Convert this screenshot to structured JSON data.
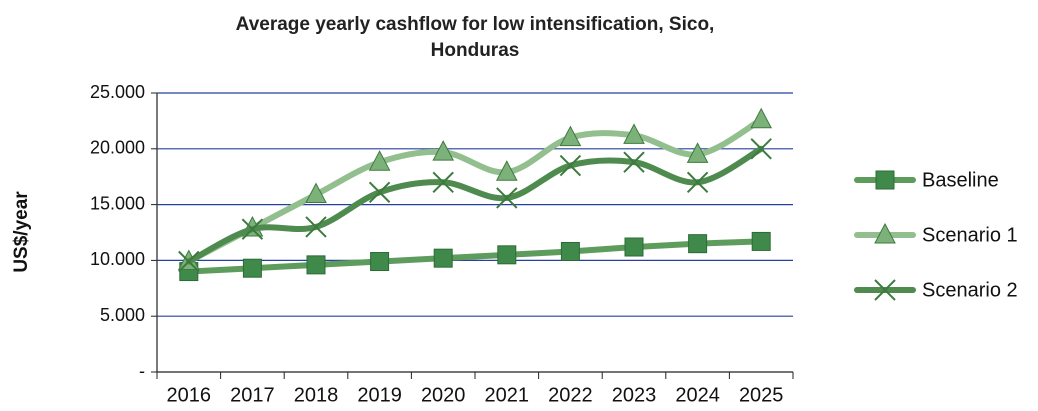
{
  "chart_data": {
    "type": "line",
    "title": "Average yearly cashflow for low intensification, Sico, Honduras",
    "y_label": "US$/year",
    "categories": [
      "2016",
      "2017",
      "2018",
      "2019",
      "2020",
      "2021",
      "2022",
      "2023",
      "2024",
      "2025"
    ],
    "series": [
      {
        "name": "Baseline",
        "color": "#5e9c5e",
        "marker": "square",
        "marker_color": "#3f8a4a",
        "values": [
          9000,
          9300,
          9600,
          9900,
          10200,
          10500,
          10800,
          11200,
          11500,
          11700
        ]
      },
      {
        "name": "Scenario 1",
        "color": "#93bf8f",
        "marker": "triangle",
        "marker_color": "#7cb27a",
        "values": [
          9900,
          12900,
          15900,
          18800,
          19700,
          17900,
          21000,
          21200,
          19500,
          22600
        ]
      },
      {
        "name": "Scenario 2",
        "color": "#4f8a4f",
        "marker": "x",
        "marker_color": "#3d7a3f",
        "values": [
          9900,
          12800,
          13000,
          16100,
          17000,
          15600,
          18500,
          18800,
          17000,
          20000
        ]
      }
    ],
    "ylim": [
      0,
      25000
    ],
    "yticks": [
      {
        "value": 0,
        "label": "-"
      },
      {
        "value": 5000,
        "label": "5.000"
      },
      {
        "value": 10000,
        "label": "10.000"
      },
      {
        "value": 15000,
        "label": "15.000"
      },
      {
        "value": 20000,
        "label": "20.000"
      },
      {
        "value": 25000,
        "label": "25.000"
      }
    ],
    "grid": true,
    "legend": "right"
  }
}
